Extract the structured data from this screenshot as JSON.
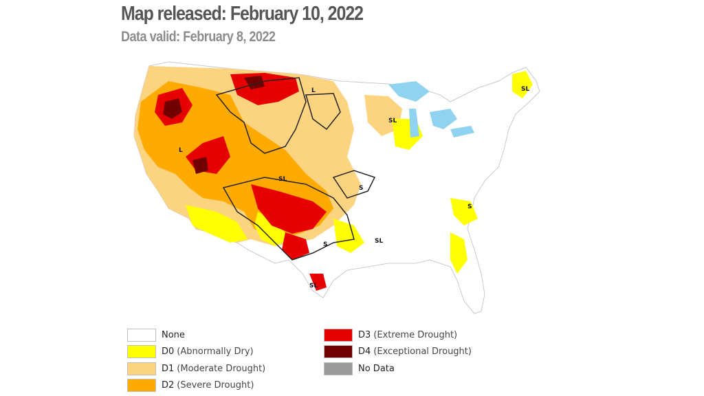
{
  "header": {
    "title": "Map released: February 10, 2022",
    "subtitle": "Data valid: February 8, 2022"
  },
  "map": {
    "region_labels": [
      "L",
      "L",
      "SL",
      "SL",
      "SL",
      "S",
      "S",
      "S",
      "SL",
      "SL"
    ]
  },
  "legend": [
    {
      "code": "None",
      "desc": "",
      "color": "#ffffff"
    },
    {
      "code": "D0",
      "desc": "(Abnormally Dry)",
      "color": "#ffff00"
    },
    {
      "code": "D1",
      "desc": "(Moderate Drought)",
      "color": "#fcd37f"
    },
    {
      "code": "D2",
      "desc": "(Severe Drought)",
      "color": "#ffaa00"
    },
    {
      "code": "D3",
      "desc": "(Extreme Drought)",
      "color": "#e60000"
    },
    {
      "code": "D4",
      "desc": "(Exceptional Drought)",
      "color": "#730000"
    },
    {
      "code": "No Data",
      "desc": "",
      "color": "#9b9b9b"
    }
  ]
}
